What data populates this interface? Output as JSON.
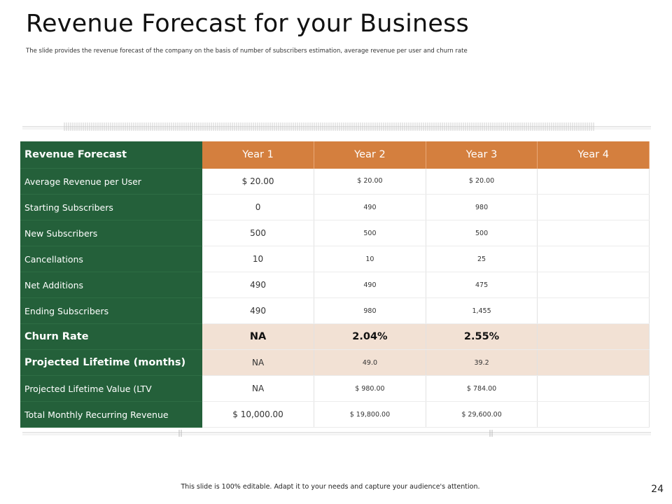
{
  "slide": {
    "title": "Revenue Forecast for your Business",
    "subtitle": "The slide provides the revenue forecast of the company on the basis of number of subscribers estimation, average revenue per user and churn rate",
    "footer": "This slide is 100% editable. Adapt it to your needs and capture your audience's attention.",
    "slide_number": "24"
  },
  "colors": {
    "row_header_green": "#24603a",
    "year_header_orange": "#d47f3e",
    "churn_row_tint": "#f2e1d4"
  },
  "table": {
    "header": {
      "label": "Revenue Forecast",
      "years": [
        "Year 1",
        "Year 2",
        "Year 3",
        "Year 4"
      ]
    },
    "rows": [
      {
        "label": "Average Revenue  per User",
        "values": [
          "$ 20.00",
          "$ 20.00",
          "$ 20.00",
          ""
        ]
      },
      {
        "label": "Starting Subscribers",
        "values": [
          "0",
          "490",
          "980",
          ""
        ]
      },
      {
        "label": "New Subscribers",
        "values": [
          "500",
          "500",
          "500",
          ""
        ]
      },
      {
        "label": "Cancellations",
        "values": [
          "10",
          "10",
          "25",
          ""
        ]
      },
      {
        "label": "Net Additions",
        "values": [
          "490",
          "490",
          "475",
          ""
        ]
      },
      {
        "label": "Ending Subscribers",
        "values": [
          "490",
          "980",
          "1,455",
          ""
        ]
      },
      {
        "label": "Churn Rate",
        "values": [
          "NA",
          "2.04%",
          "2.55%",
          ""
        ]
      },
      {
        "label": "Projected Lifetime  (months)",
        "values": [
          "NA",
          "49.0",
          "39.2",
          ""
        ]
      },
      {
        "label": "Projected Lifetime  Value (LTV",
        "values": [
          "NA",
          "$ 980.00",
          "$ 784.00",
          ""
        ]
      },
      {
        "label": "Total Monthly  Recurring Revenue",
        "values": [
          "$ 10,000.00",
          "$ 19,800.00",
          "$ 29,600.00",
          ""
        ]
      }
    ]
  }
}
